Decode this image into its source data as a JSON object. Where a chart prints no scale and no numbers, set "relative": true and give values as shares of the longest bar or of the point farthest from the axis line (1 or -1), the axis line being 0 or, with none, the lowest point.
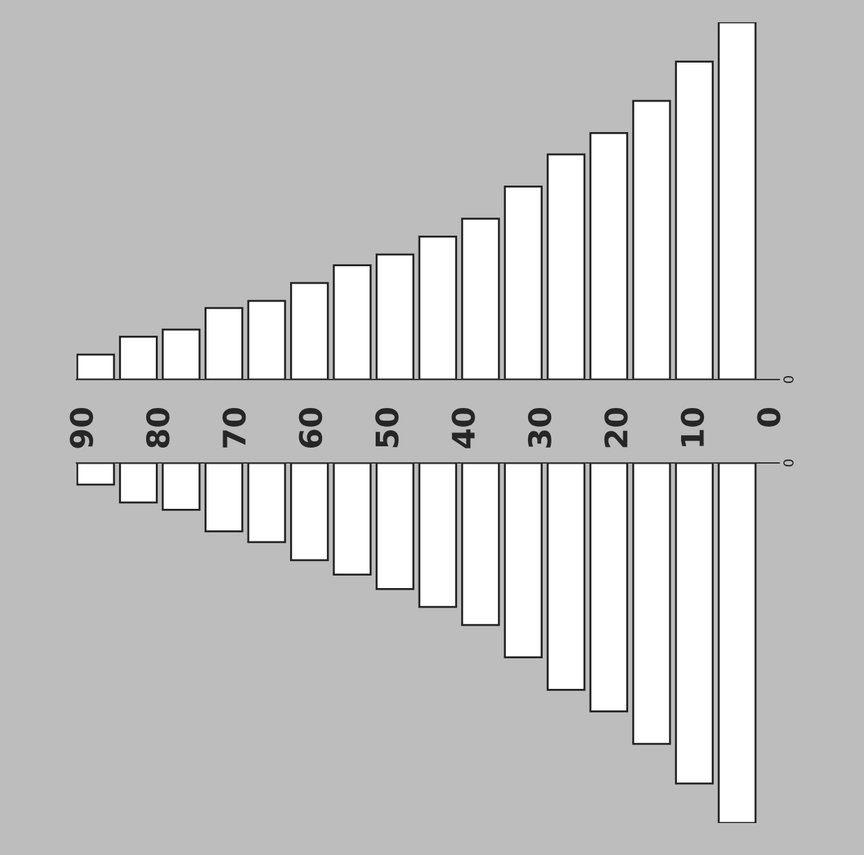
{
  "chart_data": [
    {
      "type": "bar",
      "relative": true,
      "color": "#ffffff",
      "x": [
        88.5,
        82.9,
        77.3,
        71.7,
        66.1,
        60.5,
        54.9,
        49.3,
        43.7,
        38.1,
        32.5,
        26.9,
        21.3,
        15.7,
        10.1,
        4.5
      ],
      "values": [
        0.07,
        0.12,
        0.14,
        0.2,
        0.22,
        0.27,
        0.32,
        0.35,
        0.4,
        0.45,
        0.54,
        0.63,
        0.69,
        0.78,
        0.89,
        1.0
      ],
      "xlim": [
        91,
        -1
      ],
      "xticks": [
        90,
        80,
        70,
        60,
        50,
        40,
        30,
        20,
        10,
        0
      ],
      "annotations": [
        "0"
      ],
      "grid": false,
      "legend": false
    },
    {
      "type": "bar",
      "relative": true,
      "color": "#ffffff",
      "x": [
        88.5,
        82.9,
        77.3,
        71.7,
        66.1,
        60.5,
        54.9,
        49.3,
        43.7,
        38.1,
        32.5,
        26.9,
        21.3,
        15.7,
        10.1,
        4.5
      ],
      "values": [
        -0.06,
        -0.11,
        -0.13,
        -0.19,
        -0.22,
        -0.27,
        -0.31,
        -0.35,
        -0.4,
        -0.45,
        -0.54,
        -0.63,
        -0.69,
        -0.78,
        -0.89,
        -1.0
      ],
      "xlim": [
        91,
        -1
      ],
      "xticks": [
        90,
        80,
        70,
        60,
        50,
        40,
        30,
        20,
        10,
        0
      ],
      "tick_labels": false,
      "annotations": [
        "0"
      ],
      "grid": false,
      "legend": false
    }
  ]
}
